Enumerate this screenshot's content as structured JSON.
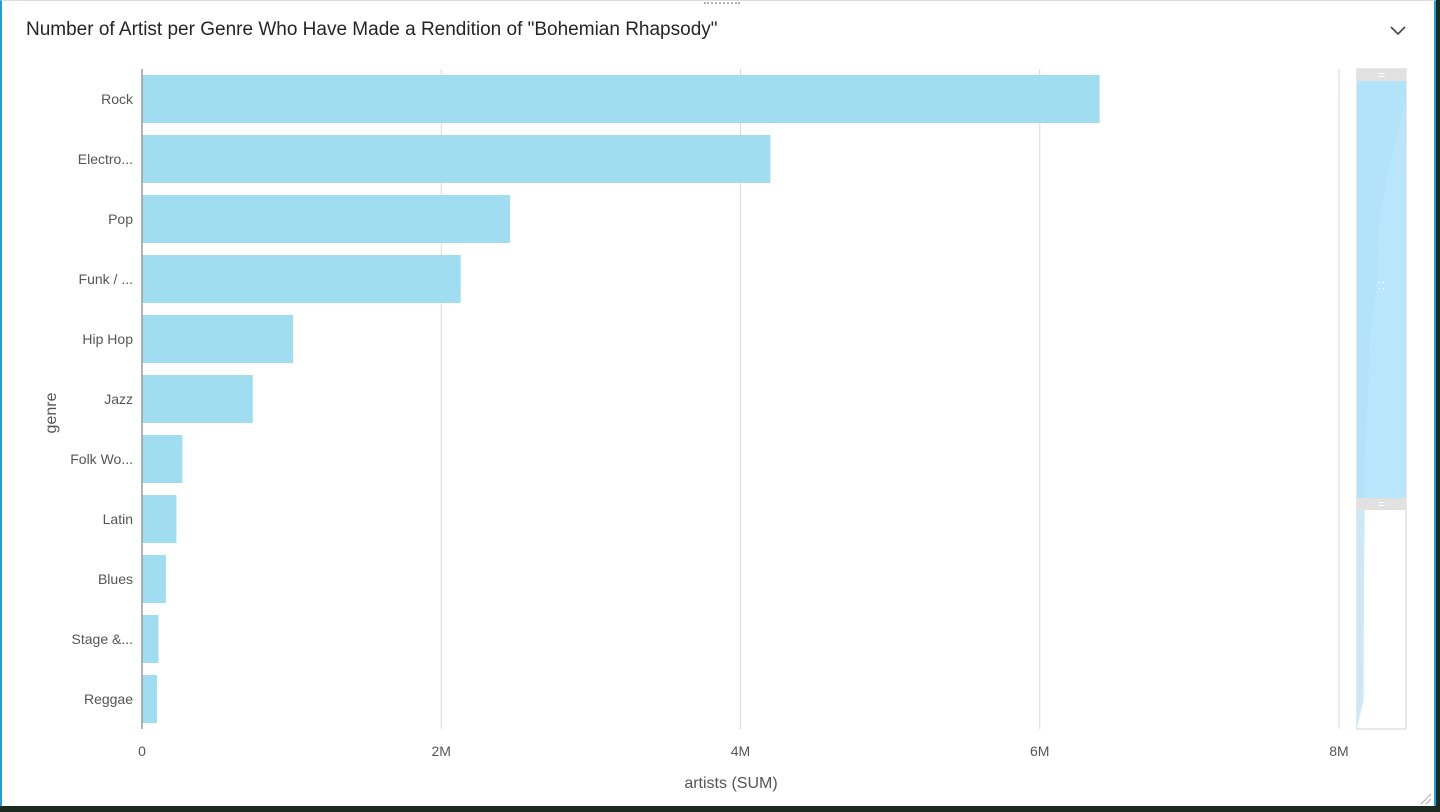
{
  "header": {
    "title": "Number of Artist per Genre Who Have Made a Rendition of \"Bohemian Rhapsody\"",
    "collapse_icon": "chevron-down-icon"
  },
  "colors": {
    "bar": "#a1ddf0",
    "axis": "#9a9a9a",
    "grid": "#d9d9d9",
    "text": "#555555",
    "accent_border": "#1aa0db",
    "navigator_window": "#aee2fb"
  },
  "chart_data": {
    "type": "bar",
    "orientation": "horizontal",
    "title": "Number of Artist per Genre Who Have Made a Rendition of \"Bohemian Rhapsody\"",
    "xlabel": "artists (SUM)",
    "ylabel": "genre",
    "categories": [
      "Rock",
      "Electro...",
      "Pop",
      "Funk / ...",
      "Hip Hop",
      "Jazz",
      "Folk Wo...",
      "Latin",
      "Blues",
      "Stage &...",
      "Reggae"
    ],
    "values": [
      6400000,
      4200000,
      2460000,
      2130000,
      1010000,
      740000,
      270000,
      230000,
      160000,
      110000,
      100000
    ],
    "xlim": [
      0,
      8000000
    ],
    "x_ticks": [
      0,
      2000000,
      4000000,
      6000000,
      8000000
    ],
    "x_tick_labels": [
      "0",
      "2M",
      "4M",
      "6M",
      "8M"
    ],
    "grid": true,
    "legend": "none"
  },
  "navigator": {
    "window_start": 0,
    "window_end": 0.65
  }
}
